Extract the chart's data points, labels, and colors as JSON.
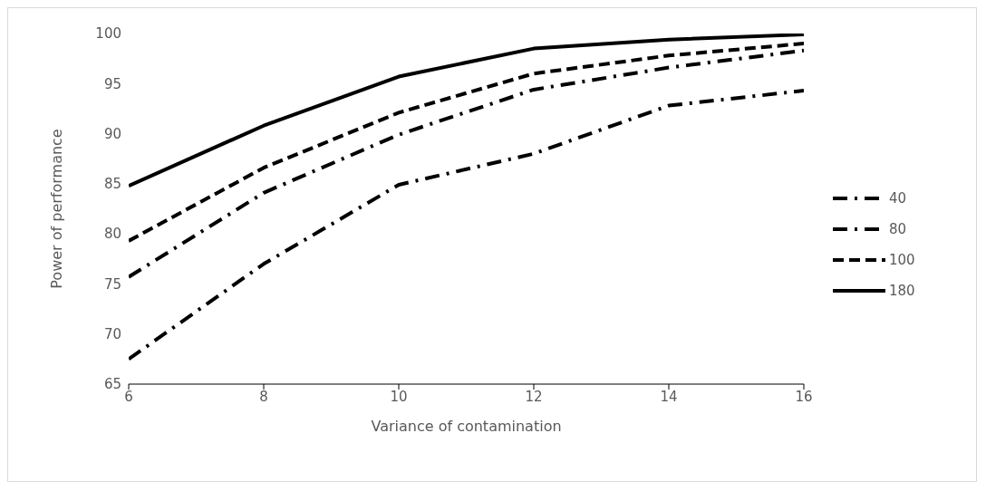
{
  "chart_data": {
    "type": "line",
    "xlabel": "Variance of contamination",
    "ylabel": "Power of performance",
    "x": [
      6,
      8,
      10,
      12,
      14,
      16
    ],
    "series": [
      {
        "name": "40",
        "color": "#000000",
        "line_style": "dashdot",
        "values": [
          67.5,
          77.0,
          84.9,
          88.0,
          92.8,
          94.3
        ]
      },
      {
        "name": "80",
        "color": "#000000",
        "line_style": "dashdot",
        "values": [
          75.7,
          84.1,
          89.9,
          94.4,
          96.6,
          98.3
        ]
      },
      {
        "name": "100",
        "color": "#000000",
        "line_style": "dashed",
        "values": [
          79.3,
          86.6,
          92.1,
          96.0,
          97.8,
          99.0
        ]
      },
      {
        "name": "180",
        "color": "#000000",
        "line_style": "solid",
        "values": [
          84.8,
          90.8,
          95.7,
          98.5,
          99.4,
          99.9
        ]
      }
    ],
    "xlim": [
      6,
      16
    ],
    "xticks": [
      6,
      8,
      10,
      12,
      14,
      16
    ],
    "ylim": [
      65,
      100
    ],
    "yticks": [
      65,
      70,
      75,
      80,
      85,
      90,
      95,
      100
    ],
    "grid": false,
    "legend": "right",
    "marker": "none"
  }
}
